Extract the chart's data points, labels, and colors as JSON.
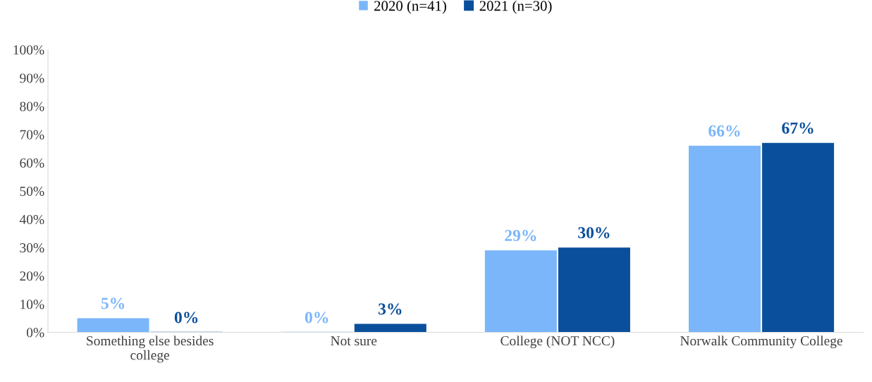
{
  "chart_data": {
    "type": "bar",
    "categories": [
      "Something else besides\ncollege",
      "Not sure",
      "College (NOT NCC)",
      "Norwalk Community College"
    ],
    "series": [
      {
        "name": "2020 (n=41)",
        "color": "#7ab6f9",
        "values": [
          5,
          0,
          29,
          66
        ],
        "value_labels": [
          "5%",
          "0%",
          "29%",
          "66%"
        ]
      },
      {
        "name": "2021 (n=30)",
        "color": "#0a4f9c",
        "values": [
          0,
          3,
          30,
          67
        ],
        "value_labels": [
          "0%",
          "3%",
          "30%",
          "67%"
        ]
      }
    ],
    "ylim": [
      0,
      100
    ],
    "yticks": [
      {
        "value": 0,
        "label": "0%"
      },
      {
        "value": 10,
        "label": "10%"
      },
      {
        "value": 20,
        "label": "20%"
      },
      {
        "value": 30,
        "label": "30%"
      },
      {
        "value": 40,
        "label": "40%"
      },
      {
        "value": 50,
        "label": "50%"
      },
      {
        "value": 60,
        "label": "60%"
      },
      {
        "value": 70,
        "label": "70%"
      },
      {
        "value": 80,
        "label": "80%"
      },
      {
        "value": 90,
        "label": "90%"
      },
      {
        "value": 100,
        "label": "100%"
      }
    ],
    "grid": false,
    "legend": "top"
  }
}
